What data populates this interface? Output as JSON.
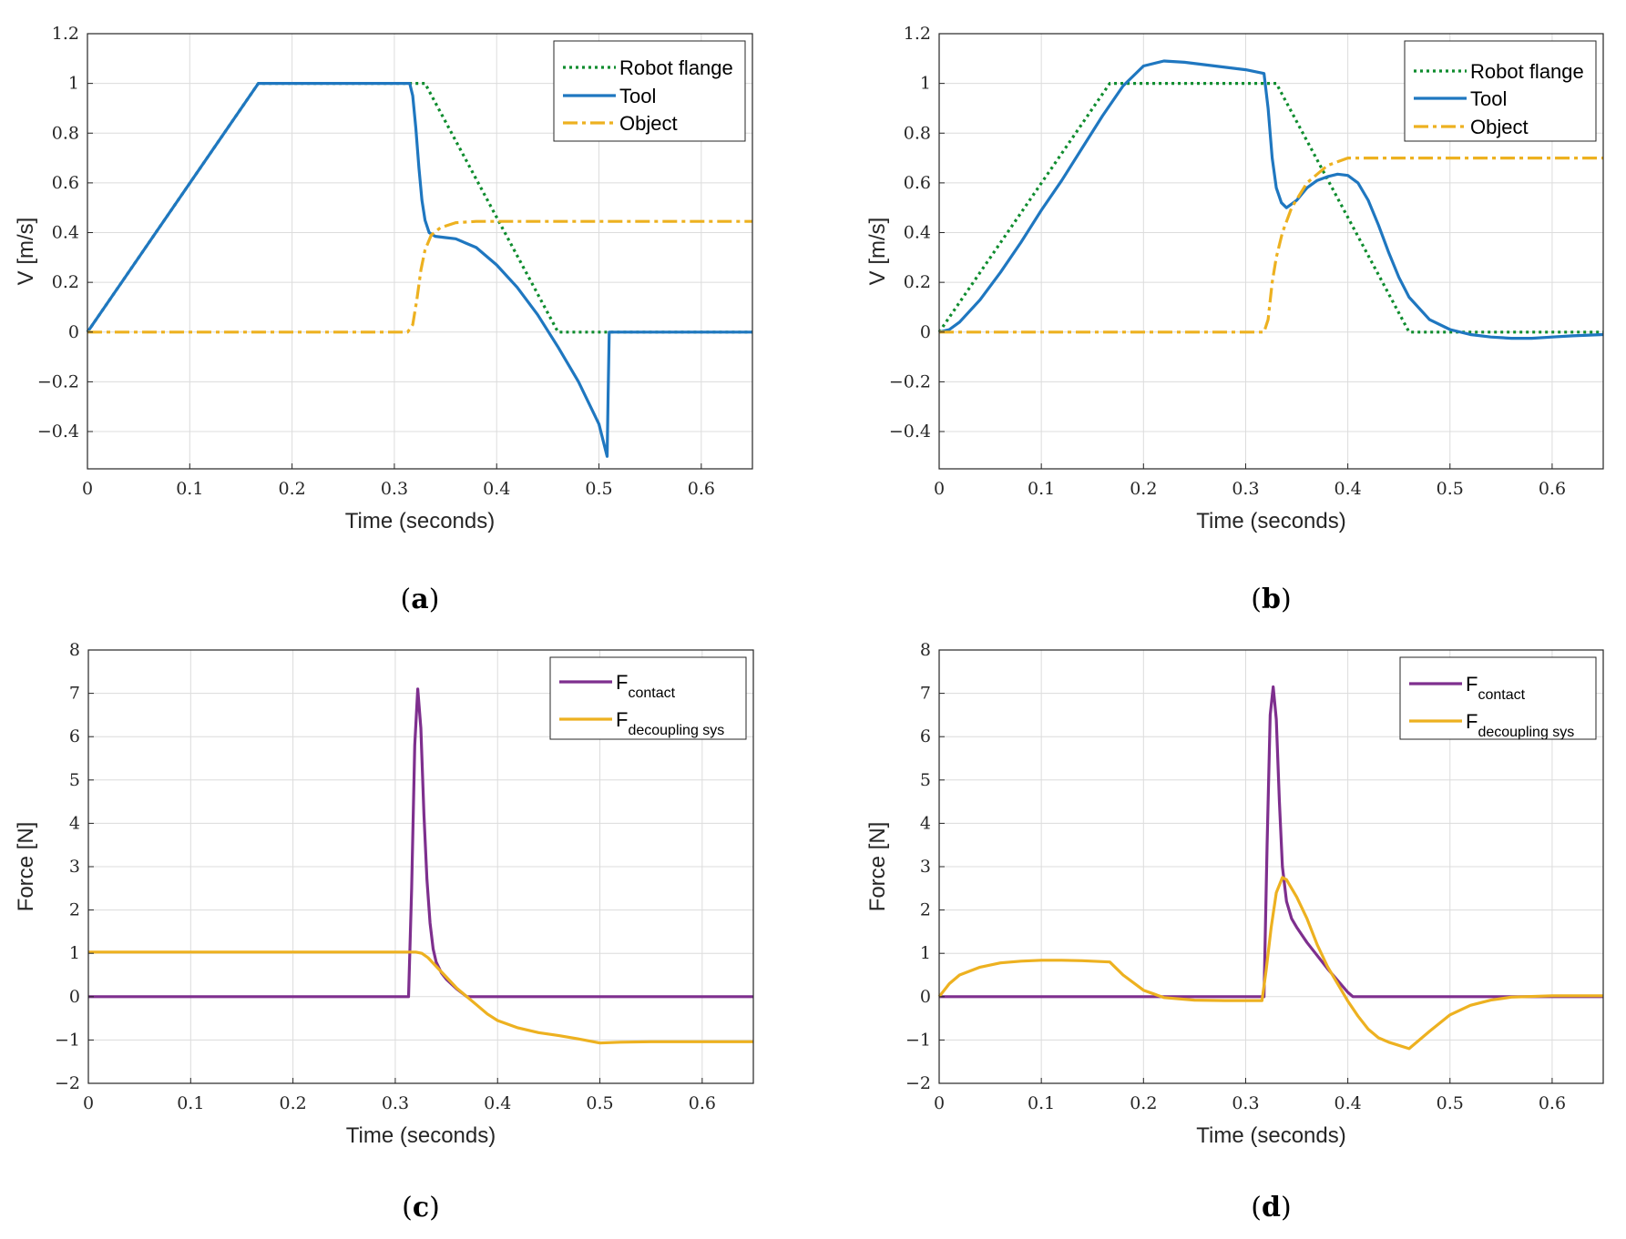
{
  "colors": {
    "robot_flange": "#0e8c2e",
    "tool": "#1f77c0",
    "object": "#edb120",
    "contact": "#7e2f8e",
    "decoupling": "#edb120"
  },
  "chart_data": [
    {
      "type": "line",
      "caption": "a",
      "xlabel": "Time (seconds)",
      "ylabel": "V [m/s]",
      "xlim": [
        0,
        0.65
      ],
      "ylim": [
        -0.55,
        1.2
      ],
      "xticks": [
        0,
        0.1,
        0.2,
        0.3,
        0.4,
        0.5,
        0.6
      ],
      "xtick_labels": [
        "0",
        "0.1",
        "0.2",
        "0.3",
        "0.4",
        "0.5",
        "0.6"
      ],
      "yticks": [
        -0.4,
        -0.2,
        0,
        0.2,
        0.4,
        0.6,
        0.8,
        1,
        1.2
      ],
      "ytick_labels": [
        "−0.4",
        "−0.2",
        "0",
        "0.2",
        "0.4",
        "0.6",
        "0.8",
        "1",
        "1.2"
      ],
      "grid": true,
      "legend_position": "top-right",
      "series": [
        {
          "name": "Robot flange",
          "color": "#0e8c2e",
          "style": "dotted",
          "x": [
            0,
            0.167,
            0.32,
            0.33,
            0.46,
            0.65
          ],
          "y": [
            0,
            1,
            1,
            1,
            0,
            0
          ]
        },
        {
          "name": "Tool",
          "color": "#1f77c0",
          "style": "solid",
          "x": [
            0,
            0.167,
            0.315,
            0.318,
            0.321,
            0.324,
            0.327,
            0.33,
            0.334,
            0.34,
            0.35,
            0.36,
            0.38,
            0.4,
            0.42,
            0.44,
            0.46,
            0.48,
            0.5,
            0.508,
            0.509,
            0.51,
            0.65
          ],
          "y": [
            0,
            1,
            1,
            0.95,
            0.82,
            0.66,
            0.53,
            0.45,
            0.4,
            0.385,
            0.38,
            0.375,
            0.34,
            0.27,
            0.18,
            0.07,
            -0.06,
            -0.2,
            -0.37,
            -0.5,
            -0.25,
            0,
            0
          ]
        },
        {
          "name": "Object",
          "color": "#edb120",
          "style": "dashdot",
          "x": [
            0,
            0.313,
            0.318,
            0.322,
            0.326,
            0.33,
            0.336,
            0.345,
            0.36,
            0.38,
            0.4,
            0.65
          ],
          "y": [
            0,
            0,
            0.03,
            0.13,
            0.25,
            0.33,
            0.39,
            0.42,
            0.44,
            0.445,
            0.445,
            0.445
          ]
        }
      ]
    },
    {
      "type": "line",
      "caption": "b",
      "xlabel": "Time (seconds)",
      "ylabel": "V [m/s]",
      "xlim": [
        0,
        0.65
      ],
      "ylim": [
        -0.55,
        1.2
      ],
      "xticks": [
        0,
        0.1,
        0.2,
        0.3,
        0.4,
        0.5,
        0.6
      ],
      "xtick_labels": [
        "0",
        "0.1",
        "0.2",
        "0.3",
        "0.4",
        "0.5",
        "0.6"
      ],
      "yticks": [
        -0.4,
        -0.2,
        0,
        0.2,
        0.4,
        0.6,
        0.8,
        1,
        1.2
      ],
      "ytick_labels": [
        "−0.4",
        "−0.2",
        "0",
        "0.2",
        "0.4",
        "0.6",
        "0.8",
        "1",
        "1.2"
      ],
      "grid": true,
      "legend_position": "top-right",
      "series": [
        {
          "name": "Robot flange",
          "color": "#0e8c2e",
          "style": "dotted",
          "x": [
            0,
            0.167,
            0.32,
            0.33,
            0.46,
            0.65
          ],
          "y": [
            0,
            1,
            1,
            1,
            0,
            0
          ]
        },
        {
          "name": "Tool",
          "color": "#1f77c0",
          "style": "solid",
          "x": [
            0,
            0.01,
            0.02,
            0.04,
            0.06,
            0.08,
            0.1,
            0.12,
            0.14,
            0.16,
            0.18,
            0.2,
            0.22,
            0.24,
            0.26,
            0.28,
            0.3,
            0.318,
            0.322,
            0.326,
            0.33,
            0.335,
            0.34,
            0.35,
            0.36,
            0.37,
            0.38,
            0.39,
            0.4,
            0.41,
            0.42,
            0.43,
            0.44,
            0.45,
            0.46,
            0.48,
            0.5,
            0.52,
            0.54,
            0.56,
            0.58,
            0.6,
            0.62,
            0.65
          ],
          "y": [
            0,
            0.01,
            0.04,
            0.13,
            0.24,
            0.36,
            0.49,
            0.61,
            0.74,
            0.87,
            0.99,
            1.07,
            1.09,
            1.085,
            1.075,
            1.065,
            1.055,
            1.04,
            0.9,
            0.7,
            0.58,
            0.52,
            0.5,
            0.53,
            0.58,
            0.61,
            0.625,
            0.635,
            0.63,
            0.6,
            0.53,
            0.43,
            0.32,
            0.22,
            0.14,
            0.05,
            0.01,
            -0.01,
            -0.02,
            -0.025,
            -0.025,
            -0.02,
            -0.015,
            -0.01
          ]
        },
        {
          "name": "Object",
          "color": "#edb120",
          "style": "dashdot",
          "x": [
            0,
            0.318,
            0.322,
            0.326,
            0.33,
            0.336,
            0.345,
            0.36,
            0.38,
            0.4,
            0.65
          ],
          "y": [
            0,
            0,
            0.05,
            0.2,
            0.3,
            0.4,
            0.5,
            0.6,
            0.67,
            0.7,
            0.7
          ]
        }
      ]
    },
    {
      "type": "line",
      "caption": "c",
      "xlabel": "Time (seconds)",
      "ylabel": "Force [N]",
      "xlim": [
        0,
        0.65
      ],
      "ylim": [
        -2,
        8
      ],
      "xticks": [
        0,
        0.1,
        0.2,
        0.3,
        0.4,
        0.5,
        0.6
      ],
      "xtick_labels": [
        "0",
        "0.1",
        "0.2",
        "0.3",
        "0.4",
        "0.5",
        "0.6"
      ],
      "yticks": [
        -2,
        -1,
        0,
        1,
        2,
        3,
        4,
        5,
        6,
        7,
        8
      ],
      "ytick_labels": [
        "−2",
        "−1",
        "0",
        "1",
        "2",
        "3",
        "4",
        "5",
        "6",
        "7",
        "8"
      ],
      "grid": true,
      "legend_position": "top-right",
      "series": [
        {
          "name": "F",
          "subscript": "contact",
          "color": "#7e2f8e",
          "style": "solid",
          "x": [
            0,
            0.313,
            0.316,
            0.319,
            0.322,
            0.325,
            0.328,
            0.331,
            0.334,
            0.337,
            0.34,
            0.345,
            0.35,
            0.36,
            0.37,
            0.65
          ],
          "y": [
            0,
            0,
            2.5,
            5.8,
            7.1,
            6.2,
            4.2,
            2.7,
            1.7,
            1.1,
            0.8,
            0.55,
            0.4,
            0.18,
            0,
            0
          ]
        },
        {
          "name": "F",
          "subscript": "decoupling sys",
          "color": "#edb120",
          "style": "solid",
          "x": [
            0,
            0.313,
            0.32,
            0.326,
            0.332,
            0.34,
            0.35,
            0.36,
            0.37,
            0.38,
            0.39,
            0.4,
            0.42,
            0.44,
            0.46,
            0.48,
            0.5,
            0.52,
            0.55,
            0.6,
            0.65
          ],
          "y": [
            1.03,
            1.03,
            1.03,
            1.0,
            0.9,
            0.7,
            0.45,
            0.2,
            0.0,
            -0.2,
            -0.4,
            -0.55,
            -0.72,
            -0.83,
            -0.9,
            -0.98,
            -1.07,
            -1.05,
            -1.04,
            -1.04,
            -1.04
          ]
        }
      ]
    },
    {
      "type": "line",
      "caption": "d",
      "xlabel": "Time (seconds)",
      "ylabel": "Force [N]",
      "xlim": [
        0,
        0.65
      ],
      "ylim": [
        -2,
        8
      ],
      "xticks": [
        0,
        0.1,
        0.2,
        0.3,
        0.4,
        0.5,
        0.6
      ],
      "xtick_labels": [
        "0",
        "0.1",
        "0.2",
        "0.3",
        "0.4",
        "0.5",
        "0.6"
      ],
      "yticks": [
        -2,
        -1,
        0,
        1,
        2,
        3,
        4,
        5,
        6,
        7,
        8
      ],
      "ytick_labels": [
        "−2",
        "−1",
        "0",
        "1",
        "2",
        "3",
        "4",
        "5",
        "6",
        "7",
        "8"
      ],
      "grid": true,
      "legend_position": "top-right",
      "series": [
        {
          "name": "F",
          "subscript": "contact",
          "color": "#7e2f8e",
          "style": "solid",
          "x": [
            0,
            0.318,
            0.321,
            0.324,
            0.327,
            0.33,
            0.333,
            0.336,
            0.34,
            0.345,
            0.35,
            0.36,
            0.38,
            0.4,
            0.405,
            0.65
          ],
          "y": [
            0,
            0,
            3.5,
            6.5,
            7.15,
            6.4,
            4.5,
            3.0,
            2.2,
            1.8,
            1.6,
            1.25,
            0.65,
            0.1,
            0,
            0
          ]
        },
        {
          "name": "F",
          "subscript": "decoupling sys",
          "color": "#edb120",
          "style": "solid",
          "x": [
            0,
            0.01,
            0.02,
            0.04,
            0.06,
            0.08,
            0.1,
            0.12,
            0.14,
            0.167,
            0.18,
            0.2,
            0.22,
            0.25,
            0.28,
            0.3,
            0.316,
            0.32,
            0.325,
            0.33,
            0.336,
            0.34,
            0.35,
            0.36,
            0.37,
            0.38,
            0.39,
            0.4,
            0.41,
            0.42,
            0.43,
            0.44,
            0.46,
            0.48,
            0.5,
            0.52,
            0.54,
            0.56,
            0.6,
            0.65
          ],
          "y": [
            0,
            0.3,
            0.5,
            0.68,
            0.78,
            0.82,
            0.84,
            0.84,
            0.83,
            0.8,
            0.5,
            0.15,
            -0.02,
            -0.08,
            -0.09,
            -0.09,
            -0.09,
            0.6,
            1.6,
            2.4,
            2.75,
            2.7,
            2.3,
            1.8,
            1.2,
            0.7,
            0.3,
            -0.1,
            -0.45,
            -0.75,
            -0.95,
            -1.05,
            -1.2,
            -0.8,
            -0.42,
            -0.2,
            -0.08,
            -0.01,
            0.02,
            0.02
          ]
        }
      ]
    }
  ]
}
